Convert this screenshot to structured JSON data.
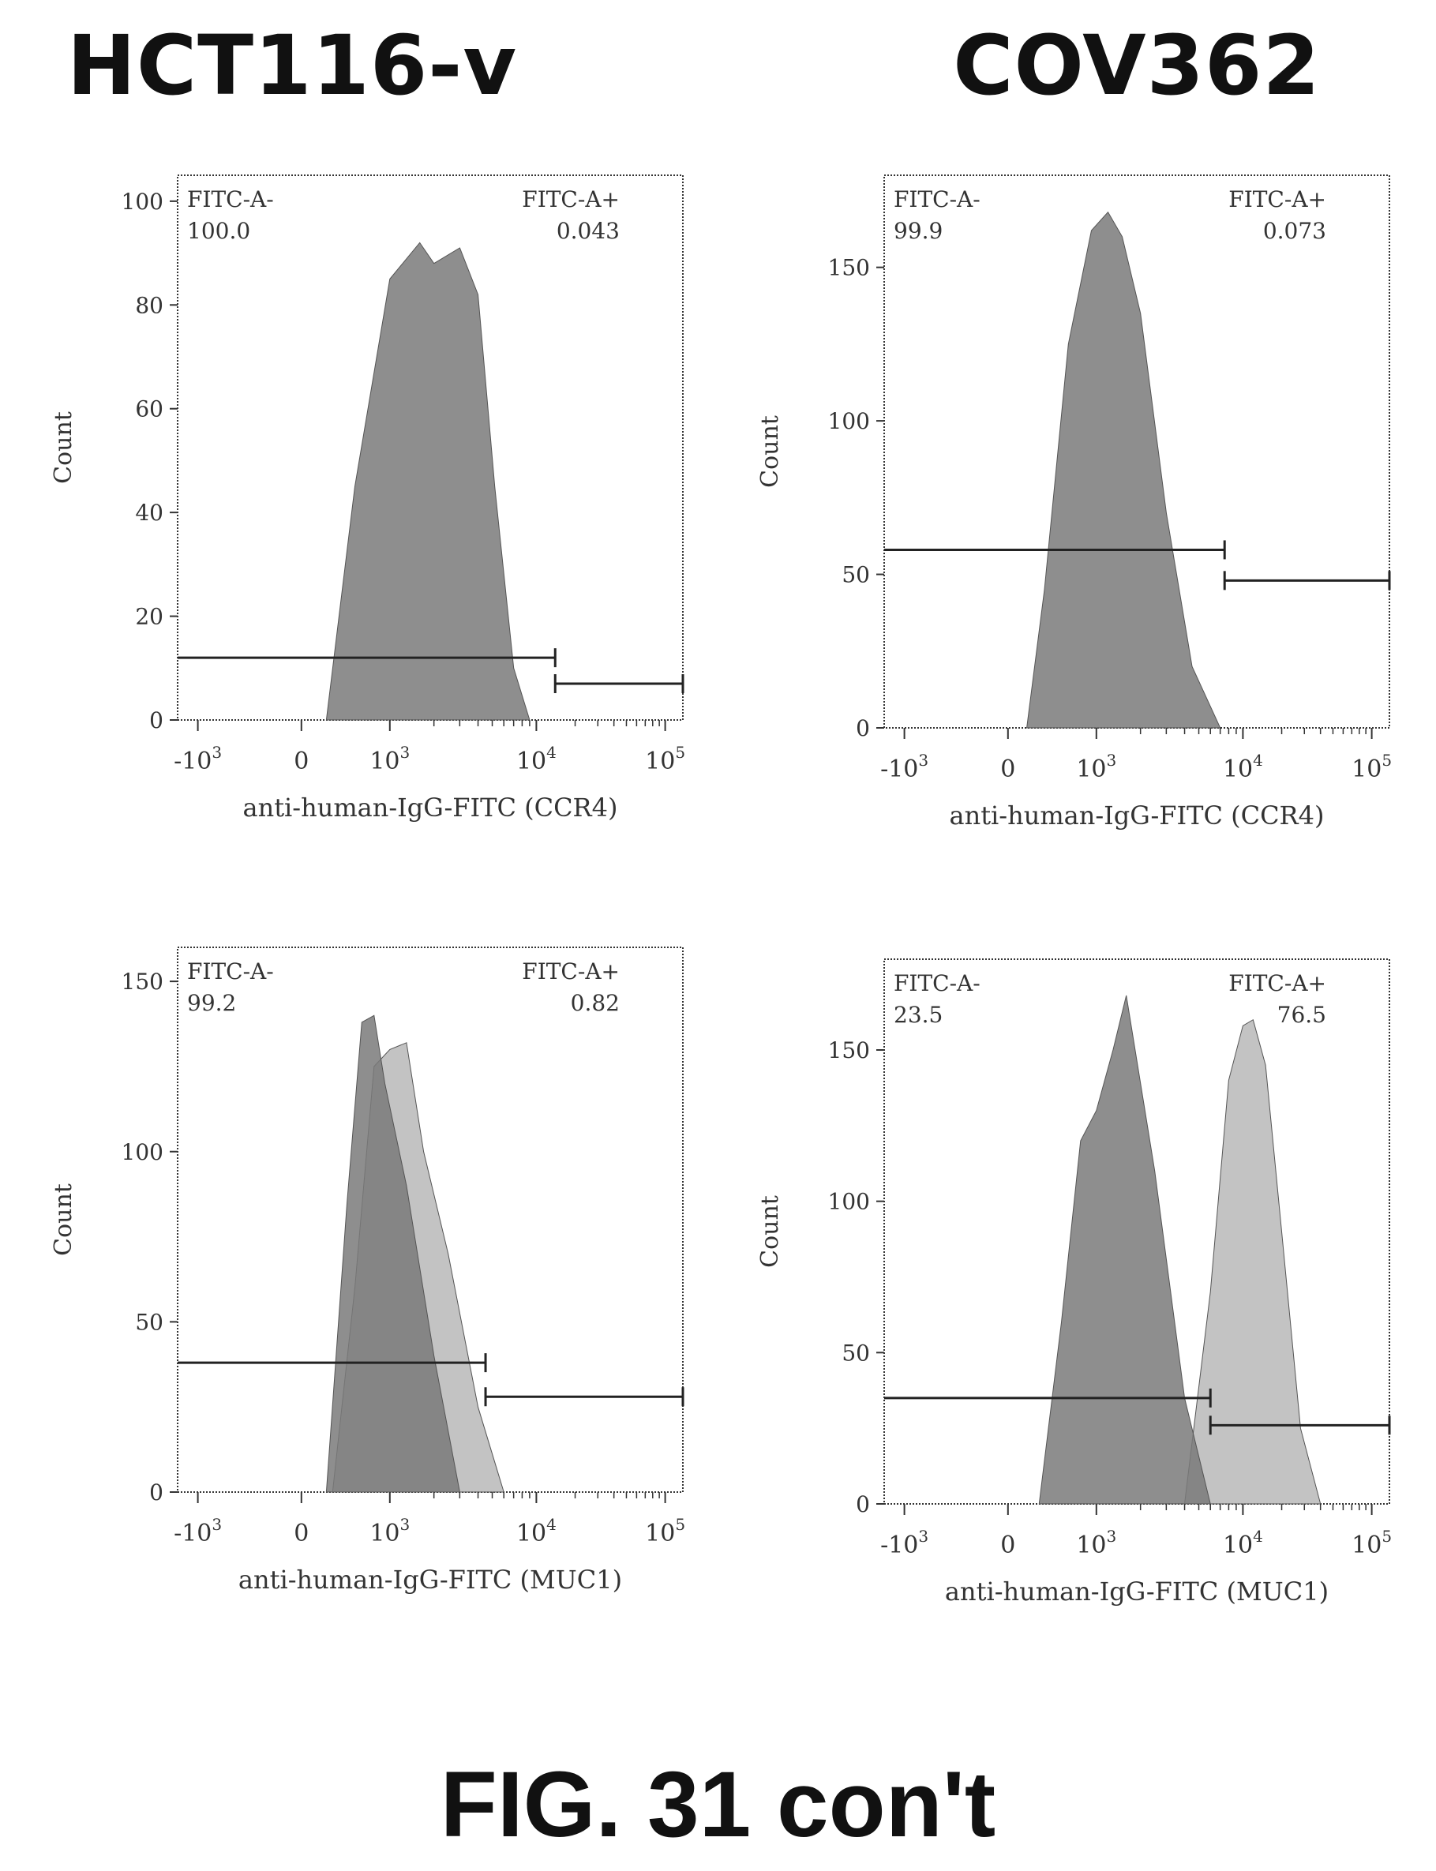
{
  "headers": {
    "left": "HCT116-v",
    "right": "COV362"
  },
  "figure_caption": "FIG. 31 con't",
  "colors": {
    "peak_dark": "#7a7a7a",
    "peak_light": "#b4b4b4",
    "axis": "#333333",
    "gate": "#222222"
  },
  "chart_data": [
    {
      "type": "histogram",
      "column": "HCT116-v",
      "ylabel": "Count",
      "xlabel": "anti-human-IgG-FITC (CCR4)",
      "ylim": [
        0,
        105
      ],
      "yticks": [
        0,
        20,
        40,
        60,
        80,
        100
      ],
      "xticks": [
        "-10^3",
        "0",
        "10^3",
        "10^4",
        "10^5"
      ],
      "gates": [
        {
          "name": "FITC-A-",
          "label": "FITC-A-",
          "percent": "100.0",
          "from": -3000,
          "to": 14000,
          "y": 12
        },
        {
          "name": "FITC-A+",
          "label": "FITC-A+",
          "percent": "0.043",
          "from": 14000,
          "to": 150000,
          "y": 7
        }
      ],
      "series": [
        {
          "shade": "dark",
          "x": [
            100,
            400,
            1000,
            1600,
            2000,
            3000,
            4000,
            5200,
            7000,
            9000
          ],
          "y": [
            0,
            45,
            85,
            92,
            88,
            91,
            82,
            45,
            10,
            0
          ]
        }
      ]
    },
    {
      "type": "histogram",
      "column": "COV362",
      "ylabel": "Count",
      "xlabel": "anti-human-IgG-FITC (CCR4)",
      "ylim": [
        0,
        180
      ],
      "yticks": [
        0,
        50,
        100,
        150
      ],
      "xticks": [
        "-10^3",
        "0",
        "10^3",
        "10^4",
        "10^5"
      ],
      "gates": [
        {
          "name": "FITC-A-",
          "label": "FITC-A-",
          "percent": "99.9",
          "from": -3000,
          "to": 7500,
          "y": 58
        },
        {
          "name": "FITC-A+",
          "label": "FITC-A+",
          "percent": "0.073",
          "from": 7500,
          "to": 150000,
          "y": 48
        }
      ],
      "series": [
        {
          "shade": "dark",
          "x": [
            60,
            200,
            500,
            900,
            1200,
            1500,
            2000,
            3000,
            4500,
            7000
          ],
          "y": [
            0,
            45,
            125,
            162,
            168,
            160,
            135,
            70,
            20,
            0
          ]
        }
      ]
    },
    {
      "type": "histogram",
      "column": "HCT116-v",
      "ylabel": "Count",
      "xlabel": "anti-human-IgG-FITC (MUC1)",
      "ylim": [
        0,
        160
      ],
      "yticks": [
        0,
        50,
        100,
        150
      ],
      "xticks": [
        "-10^3",
        "0",
        "10^3",
        "10^4",
        "10^5"
      ],
      "gates": [
        {
          "name": "FITC-A-",
          "label": "FITC-A-",
          "percent": "99.2",
          "from": -3000,
          "to": 4500,
          "y": 38
        },
        {
          "name": "FITC-A+",
          "label": "FITC-A+",
          "percent": "0.82",
          "from": 4500,
          "to": 150000,
          "y": 28
        }
      ],
      "series": [
        {
          "shade": "light",
          "x": [
            150,
            400,
            700,
            1000,
            1300,
            1700,
            2500,
            4000,
            6000
          ],
          "y": [
            0,
            60,
            125,
            130,
            132,
            100,
            70,
            25,
            0
          ]
        },
        {
          "shade": "dark",
          "x": [
            100,
            300,
            500,
            700,
            900,
            1300,
            2000,
            3000
          ],
          "y": [
            0,
            85,
            138,
            140,
            120,
            90,
            40,
            0
          ]
        }
      ]
    },
    {
      "type": "histogram",
      "column": "COV362",
      "ylabel": "Count",
      "xlabel": "anti-human-IgG-FITC (MUC1)",
      "ylim": [
        0,
        180
      ],
      "yticks": [
        0,
        50,
        100,
        150
      ],
      "xticks": [
        "-10^3",
        "0",
        "10^3",
        "10^4",
        "10^5"
      ],
      "gates": [
        {
          "name": "FITC-A-",
          "label": "FITC-A-",
          "percent": "23.5",
          "from": -3000,
          "to": 6000,
          "y": 35
        },
        {
          "name": "FITC-A+",
          "label": "FITC-A+",
          "percent": "76.5",
          "from": 6000,
          "to": 150000,
          "y": 26
        }
      ],
      "series": [
        {
          "shade": "light",
          "x": [
            4000,
            6000,
            8000,
            10000,
            12000,
            15000,
            20000,
            28000,
            40000
          ],
          "y": [
            0,
            70,
            140,
            158,
            160,
            145,
            90,
            25,
            0
          ]
        },
        {
          "shade": "dark",
          "x": [
            150,
            400,
            700,
            1000,
            1300,
            1600,
            2500,
            4000,
            6000
          ],
          "y": [
            0,
            60,
            120,
            130,
            150,
            168,
            110,
            35,
            0
          ]
        }
      ]
    }
  ]
}
